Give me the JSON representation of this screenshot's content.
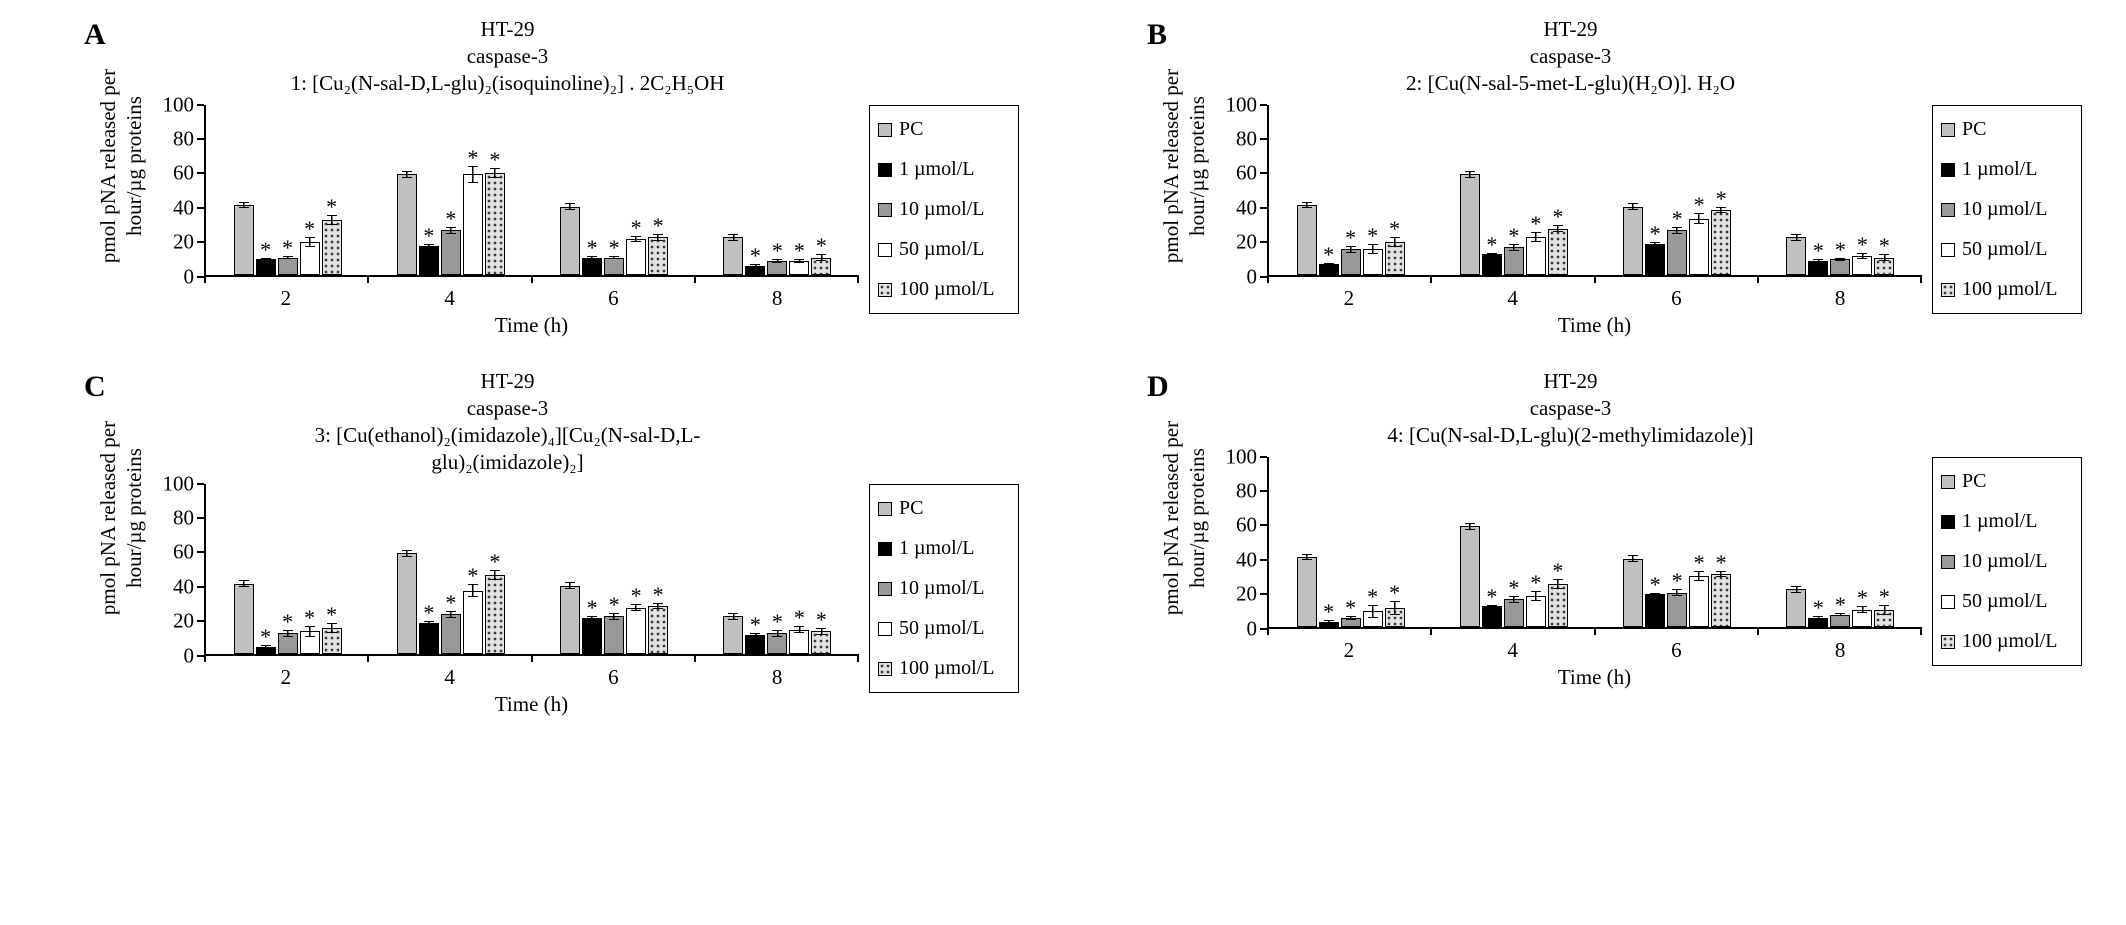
{
  "chart_data": [
    {
      "type": "bar",
      "panel_letter": "A",
      "title_lines": [
        "HT-29",
        "caspase-3",
        "1: [Cu₂(N-sal-D,L-glu)₂(isoquinoline)₂] . 2C₂H₅OH"
      ],
      "ylabel_lines": [
        "pmol pNA released per",
        "hour/µg proteins"
      ],
      "xlabel": "Time (h)",
      "categories": [
        "2",
        "4",
        "6",
        "8"
      ],
      "ylim": [
        0,
        100
      ],
      "yticks": [
        0,
        20,
        40,
        60,
        80,
        100
      ],
      "sig_marker": "*",
      "legend_position": "right",
      "series": [
        {
          "name": "PC",
          "fill": "pc",
          "values": [
            41,
            59,
            40,
            22
          ],
          "errors": [
            2,
            2,
            2,
            2
          ],
          "sig": [
            false,
            false,
            false,
            false
          ]
        },
        {
          "name": "1 µmol/L",
          "fill": "black",
          "values": [
            9,
            17,
            10,
            5
          ],
          "errors": [
            1,
            1,
            1,
            1
          ],
          "sig": [
            true,
            true,
            true,
            true
          ]
        },
        {
          "name": "10 µmol/L",
          "fill": "gray",
          "values": [
            10,
            26,
            10,
            8
          ],
          "errors": [
            1,
            2,
            1,
            1
          ],
          "sig": [
            true,
            true,
            true,
            true
          ]
        },
        {
          "name": "50 µmol/L",
          "fill": "white",
          "values": [
            19,
            59,
            21,
            8
          ],
          "errors": [
            3,
            5,
            2,
            1
          ],
          "sig": [
            true,
            true,
            true,
            true
          ]
        },
        {
          "name": "100 µmol/L",
          "fill": "dots",
          "values": [
            32,
            60,
            22,
            10
          ],
          "errors": [
            3,
            3,
            2,
            2
          ],
          "sig": [
            true,
            true,
            true,
            true
          ]
        }
      ]
    },
    {
      "type": "bar",
      "panel_letter": "B",
      "title_lines": [
        "HT-29",
        "caspase-3",
        "2: [Cu(N-sal-5-met-L-glu)(H₂O)]. H₂O"
      ],
      "ylabel_lines": [
        "pmol pNA released per",
        "hour/µg proteins"
      ],
      "xlabel": "Time (h)",
      "categories": [
        "2",
        "4",
        "6",
        "8"
      ],
      "ylim": [
        0,
        100
      ],
      "yticks": [
        0,
        20,
        40,
        60,
        80,
        100
      ],
      "sig_marker": "*",
      "legend_position": "right",
      "series": [
        {
          "name": "PC",
          "fill": "pc",
          "values": [
            41,
            59,
            40,
            22
          ],
          "errors": [
            2,
            2,
            2,
            2
          ],
          "sig": [
            false,
            false,
            false,
            false
          ]
        },
        {
          "name": "1 µmol/L",
          "fill": "black",
          "values": [
            6,
            12,
            18,
            8
          ],
          "errors": [
            1,
            1,
            1,
            1
          ],
          "sig": [
            true,
            true,
            true,
            true
          ]
        },
        {
          "name": "10 µmol/L",
          "fill": "gray",
          "values": [
            15,
            16,
            26,
            9
          ],
          "errors": [
            2,
            2,
            2,
            1
          ],
          "sig": [
            true,
            true,
            true,
            true
          ]
        },
        {
          "name": "50 µmol/L",
          "fill": "white",
          "values": [
            15,
            22,
            33,
            11
          ],
          "errors": [
            3,
            3,
            3,
            2
          ],
          "sig": [
            true,
            true,
            true,
            true
          ]
        },
        {
          "name": "100 µmol/L",
          "fill": "dots",
          "values": [
            19,
            27,
            38,
            10
          ],
          "errors": [
            3,
            2,
            2,
            2
          ],
          "sig": [
            true,
            true,
            true,
            true
          ]
        }
      ]
    },
    {
      "type": "bar",
      "panel_letter": "C",
      "title_lines": [
        "HT-29",
        "caspase-3",
        "3: [Cu(ethanol)₂(imidazole)₄][Cu₂(N-sal-D,L-",
        "glu)₂(imidazole)₂]"
      ],
      "ylabel_lines": [
        "pmol pNA released per",
        "hour/µg proteins"
      ],
      "xlabel": "Time (h)",
      "categories": [
        "2",
        "4",
        "6",
        "8"
      ],
      "ylim": [
        0,
        100
      ],
      "yticks": [
        0,
        20,
        40,
        60,
        80,
        100
      ],
      "sig_marker": "*",
      "legend_position": "right",
      "series": [
        {
          "name": "PC",
          "fill": "pc",
          "values": [
            41,
            59,
            40,
            22
          ],
          "errors": [
            2,
            2,
            2,
            2
          ],
          "sig": [
            false,
            false,
            false,
            false
          ]
        },
        {
          "name": "1 µmol/L",
          "fill": "black",
          "values": [
            4,
            18,
            21,
            11
          ],
          "errors": [
            1,
            1,
            1,
            1
          ],
          "sig": [
            true,
            true,
            true,
            true
          ]
        },
        {
          "name": "10 µmol/L",
          "fill": "gray",
          "values": [
            12,
            23,
            22,
            12
          ],
          "errors": [
            2,
            2,
            2,
            2
          ],
          "sig": [
            true,
            true,
            true,
            true
          ]
        },
        {
          "name": "50 µmol/L",
          "fill": "white",
          "values": [
            13,
            37,
            27,
            14
          ],
          "errors": [
            3,
            4,
            2,
            2
          ],
          "sig": [
            true,
            true,
            true,
            true
          ]
        },
        {
          "name": "100 µmol/L",
          "fill": "dots",
          "values": [
            15,
            46,
            28,
            13
          ],
          "errors": [
            3,
            3,
            2,
            2
          ],
          "sig": [
            true,
            true,
            true,
            true
          ]
        }
      ]
    },
    {
      "type": "bar",
      "panel_letter": "D",
      "title_lines": [
        "HT-29",
        "caspase-3",
        "4: [Cu(N-sal-D,L-glu)(2-methylimidazole)]"
      ],
      "ylabel_lines": [
        "pmol pNA released per",
        "hour/µg proteins"
      ],
      "xlabel": "Time (h)",
      "categories": [
        "2",
        "4",
        "6",
        "8"
      ],
      "ylim": [
        0,
        100
      ],
      "yticks": [
        0,
        20,
        40,
        60,
        80,
        100
      ],
      "sig_marker": "*",
      "legend_position": "right",
      "series": [
        {
          "name": "PC",
          "fill": "pc",
          "values": [
            41,
            59,
            40,
            22
          ],
          "errors": [
            2,
            2,
            2,
            2
          ],
          "sig": [
            false,
            false,
            false,
            false
          ]
        },
        {
          "name": "1 µmol/L",
          "fill": "black",
          "values": [
            3,
            12,
            19,
            5
          ],
          "errors": [
            1,
            1,
            1,
            1
          ],
          "sig": [
            true,
            true,
            true,
            true
          ]
        },
        {
          "name": "10 µmol/L",
          "fill": "gray",
          "values": [
            5,
            16,
            20,
            7
          ],
          "errors": [
            1,
            2,
            2,
            1
          ],
          "sig": [
            true,
            true,
            true,
            true
          ]
        },
        {
          "name": "50 µmol/L",
          "fill": "white",
          "values": [
            9,
            18,
            30,
            10
          ],
          "errors": [
            4,
            3,
            3,
            2
          ],
          "sig": [
            true,
            true,
            true,
            true
          ]
        },
        {
          "name": "100 µmol/L",
          "fill": "dots",
          "values": [
            11,
            25,
            31,
            10
          ],
          "errors": [
            4,
            3,
            2,
            3
          ],
          "sig": [
            true,
            true,
            true,
            true
          ]
        }
      ]
    }
  ]
}
